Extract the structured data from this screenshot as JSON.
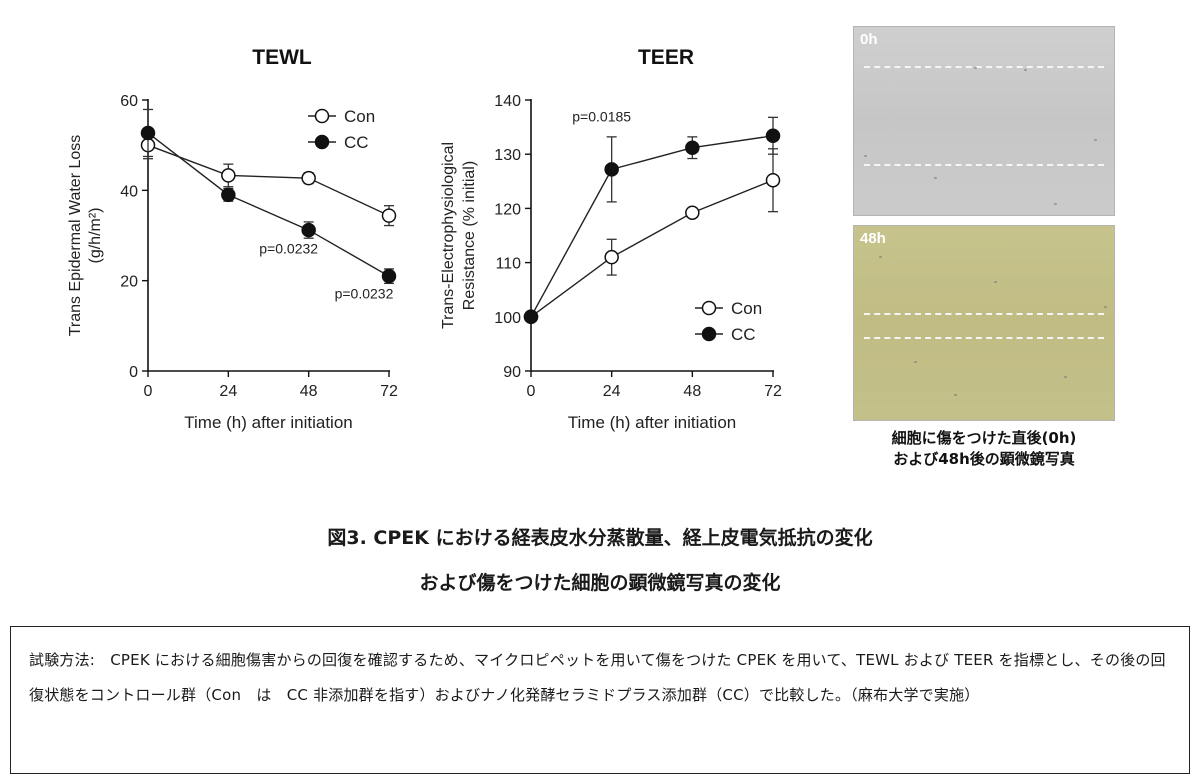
{
  "chart_data": [
    {
      "type": "line",
      "title": "TEWL",
      "xlabel": "Time (h) after initiation",
      "ylabel_lines": [
        "Trans Epidermal Water Loss",
        "(g/h/m²)"
      ],
      "x": [
        0,
        24,
        48,
        72
      ],
      "xticks": [
        "0",
        "24",
        "48",
        "72"
      ],
      "ylim": [
        0,
        60
      ],
      "yticks": [
        "0",
        "20",
        "40",
        "60"
      ],
      "series": [
        {
          "name": "Con",
          "marker": "open-circle",
          "values": [
            50,
            43.3,
            42.7,
            34.4
          ],
          "errors": [
            3,
            2.5,
            1.2,
            2.2
          ]
        },
        {
          "name": "CC",
          "marker": "filled-circle",
          "values": [
            52.7,
            39,
            31.2,
            21
          ],
          "errors": [
            5.2,
            1.4,
            1.8,
            1.6
          ]
        }
      ],
      "annotations": [
        {
          "text": "p=0.0232",
          "x": 48,
          "y": 26
        },
        {
          "text": "p=0.0232",
          "x": 72,
          "y": 16
        }
      ],
      "legend": "top-right"
    },
    {
      "type": "line",
      "title": "TEER",
      "xlabel": "Time (h) after initiation",
      "ylabel_lines": [
        "Trans-Electrophysiological",
        "Resistance (% initial)"
      ],
      "x": [
        0,
        24,
        48,
        72
      ],
      "xticks": [
        "0",
        "24",
        "48",
        "72"
      ],
      "ylim": [
        90,
        140
      ],
      "yticks": [
        "90",
        "100",
        "110",
        "120",
        "130",
        "140"
      ],
      "series": [
        {
          "name": "Con",
          "marker": "open-circle",
          "values": [
            100,
            111,
            119.2,
            125.2
          ],
          "errors": [
            0,
            3.3,
            0.7,
            5.8
          ]
        },
        {
          "name": "CC",
          "marker": "filled-circle",
          "values": [
            100,
            127.2,
            131.2,
            133.4
          ],
          "errors": [
            0,
            6,
            2,
            3.4
          ]
        }
      ],
      "annotations": [
        {
          "text": "p=0.0185",
          "x": 24,
          "y": 136
        }
      ],
      "legend": "bottom-right"
    }
  ],
  "photos": {
    "label_0h": "0h",
    "label_48h": "48h",
    "caption_line1": "細胞に傷をつけた直後(0h)",
    "caption_line2": "および48h後の顕微鏡写真"
  },
  "figure_caption": {
    "line1": "図3. CPEK における経表皮水分蒸散量、経上皮電気抵抗の変化",
    "line2": "および傷をつけた細胞の顕微鏡写真の変化"
  },
  "method": {
    "text": "試験方法:　CPEK における細胞傷害からの回復を確認するため、マイクロピペットを用いて傷をつけた CPEK を用いて、TEWL および TEER を指標とし、その後の回復状態をコントロール群（Con　は　CC 非添加群を指す）およびナノ化発酵セラミドプラス添加群（CC）で比較した。（麻布大学で実施）"
  }
}
